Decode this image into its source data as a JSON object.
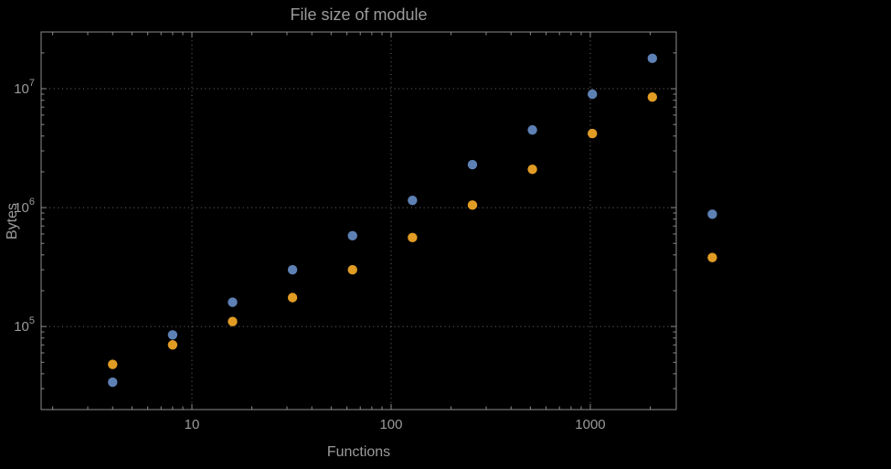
{
  "chart_data": {
    "type": "scatter",
    "title": "File size of module",
    "xlabel": "Functions",
    "ylabel": "Bytes",
    "x_scale": "log",
    "y_scale": "log",
    "grid": "dotted lines at major decades, both axes",
    "legend": "none",
    "background_color": "#000000",
    "frame_color": "#8b8b8b",
    "grid_color": "#6e6e6e",
    "text_color": "#9b9b9b",
    "xlim": [
      1.75,
      2700
    ],
    "ylim": [
      20000,
      30000000
    ],
    "x_ticks": [
      {
        "value": 10,
        "label": "10"
      },
      {
        "value": 100,
        "label": "100"
      },
      {
        "value": 1000,
        "label": "1000"
      }
    ],
    "y_ticks": [
      {
        "value": 100000,
        "base": "10",
        "exp": "5"
      },
      {
        "value": 1000000,
        "base": "10",
        "exp": "6"
      },
      {
        "value": 10000000,
        "base": "10",
        "exp": "7"
      }
    ],
    "x": [
      4,
      8,
      16,
      32,
      64,
      128,
      256,
      512,
      1024,
      2048,
      4096
    ],
    "series": [
      {
        "name": "series-1-blue",
        "color": "#5e81b5",
        "values": [
          34000,
          85000,
          160000,
          300000,
          580000,
          1150000,
          2300000,
          4500000,
          9000000,
          18000000,
          880000
        ]
      },
      {
        "name": "series-2-orange",
        "color": "#e19c24",
        "values": [
          48000,
          70000,
          110000,
          175000,
          300000,
          560000,
          1050000,
          2100000,
          4200000,
          8500000,
          380000
        ]
      }
    ]
  }
}
